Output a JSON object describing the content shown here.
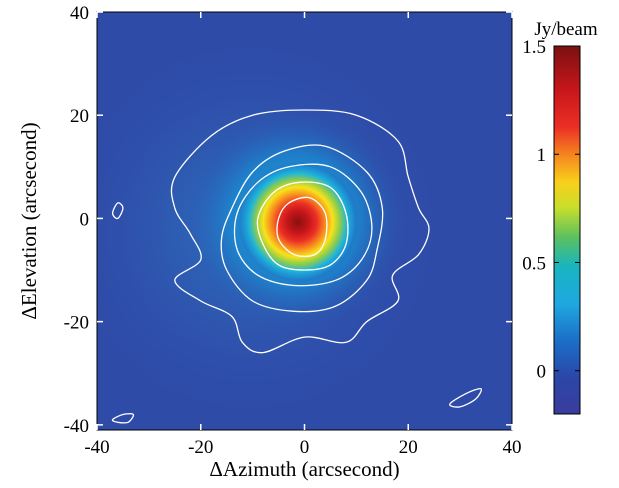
{
  "chart_data": {
    "type": "heatmap",
    "xlabel": "ΔAzimuth (arcsecond)",
    "ylabel": "ΔElevation (arcsecond)",
    "xlim": [
      -40,
      40
    ],
    "ylim": [
      -41,
      40
    ],
    "x_ticks": [
      "-40",
      "-20",
      "0",
      "20",
      "40"
    ],
    "x_tick_values": [
      -40,
      -20,
      0,
      20,
      40
    ],
    "y_ticks": [
      "40",
      "20",
      "0",
      "-20",
      "-40"
    ],
    "y_tick_values": [
      40,
      20,
      0,
      -20,
      -40
    ],
    "colorbar": {
      "label": "Jy/beam",
      "range": [
        -0.2,
        1.5
      ],
      "ticks": [
        "1.5",
        "1",
        "0.5",
        "0"
      ],
      "tick_values": [
        1.5,
        1.0,
        0.5,
        0.0
      ],
      "colormap": "jet"
    },
    "peak": {
      "x": -1,
      "y": -2,
      "value": 1.45
    },
    "contours": [
      {
        "id": "outer",
        "points": [
          [
            -25,
            8
          ],
          [
            -18,
            16
          ],
          [
            -10,
            20
          ],
          [
            0,
            21
          ],
          [
            10,
            20
          ],
          [
            18,
            15
          ],
          [
            20,
            8
          ],
          [
            22,
            2
          ],
          [
            24,
            -2
          ],
          [
            22,
            -7
          ],
          [
            17,
            -11
          ],
          [
            18,
            -16
          ],
          [
            12,
            -20
          ],
          [
            8,
            -24
          ],
          [
            0,
            -23
          ],
          [
            -8,
            -26
          ],
          [
            -12,
            -24
          ],
          [
            -14,
            -19
          ],
          [
            -20,
            -16
          ],
          [
            -25,
            -12
          ],
          [
            -20,
            -8
          ],
          [
            -22,
            -3
          ],
          [
            -25,
            2
          ]
        ]
      },
      {
        "id": "contour-2",
        "points": [
          [
            -14,
            2
          ],
          [
            -10,
            9
          ],
          [
            -4,
            13
          ],
          [
            4,
            14
          ],
          [
            12,
            9
          ],
          [
            15,
            2
          ],
          [
            14,
            -6
          ],
          [
            12,
            -12
          ],
          [
            6,
            -17
          ],
          [
            -2,
            -18
          ],
          [
            -10,
            -16
          ],
          [
            -15,
            -10
          ],
          [
            -16,
            -4
          ]
        ]
      },
      {
        "id": "contour-3",
        "points": [
          [
            -13,
            1
          ],
          [
            -9,
            7
          ],
          [
            -3,
            10
          ],
          [
            5,
            10
          ],
          [
            11,
            5
          ],
          [
            13,
            -2
          ],
          [
            11,
            -8
          ],
          [
            6,
            -12
          ],
          [
            -2,
            -13
          ],
          [
            -9,
            -11
          ],
          [
            -13,
            -6
          ]
        ]
      },
      {
        "id": "contour-4",
        "points": [
          [
            -9,
            0
          ],
          [
            -6,
            5
          ],
          [
            -1,
            7
          ],
          [
            5,
            6
          ],
          [
            8,
            1
          ],
          [
            8,
            -5
          ],
          [
            5,
            -9
          ],
          [
            0,
            -10
          ],
          [
            -5,
            -9
          ],
          [
            -8,
            -5
          ]
        ]
      },
      {
        "id": "contour-5",
        "points": [
          [
            -5,
            0
          ],
          [
            -3,
            3
          ],
          [
            1,
            4
          ],
          [
            4,
            1
          ],
          [
            4,
            -4
          ],
          [
            2,
            -7
          ],
          [
            -2,
            -7
          ],
          [
            -5,
            -4
          ]
        ]
      },
      {
        "id": "blob-left",
        "points": [
          [
            -37,
            1
          ],
          [
            -36,
            3
          ],
          [
            -35,
            2
          ],
          [
            -36,
            0
          ]
        ]
      },
      {
        "id": "blob-bottom-left",
        "points": [
          [
            -37,
            -39
          ],
          [
            -35,
            -38
          ],
          [
            -33,
            -38
          ],
          [
            -34,
            -39.5
          ],
          [
            -36,
            -39.5
          ]
        ]
      },
      {
        "id": "blob-bottom-right",
        "points": [
          [
            28,
            -36
          ],
          [
            31,
            -34
          ],
          [
            34,
            -33
          ],
          [
            33,
            -35
          ],
          [
            30,
            -36.5
          ]
        ]
      }
    ]
  }
}
